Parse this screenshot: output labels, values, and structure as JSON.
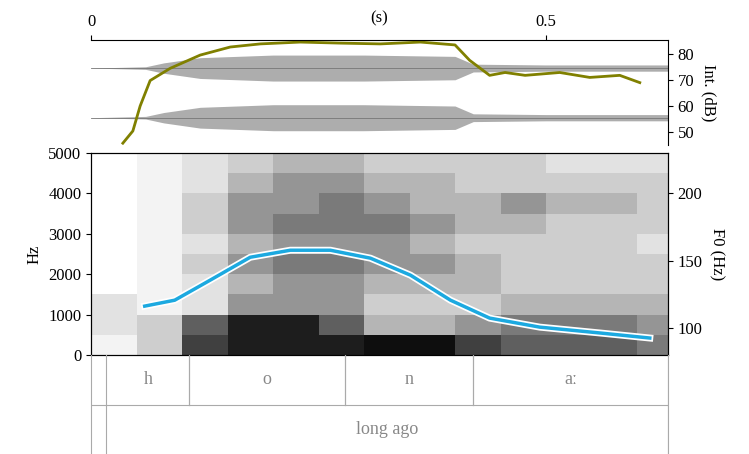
{
  "chart_data": [
    {
      "type": "line",
      "xlabel": "(s)",
      "xlim": [
        0,
        0.634
      ],
      "xticks": [
        0,
        0.5
      ],
      "ylabel": "Int. (dB)",
      "ylim": [
        45,
        85.4
      ],
      "yticks": [
        50,
        60,
        70,
        80
      ],
      "waveform": {
        "time": [
          0,
          0.06,
          0.08,
          0.12,
          0.2,
          0.3,
          0.4,
          0.42,
          0.5,
          0.634
        ],
        "amplitude": [
          0,
          0.5,
          2,
          4,
          5,
          5,
          4.5,
          1.5,
          1.2,
          1.2
        ],
        "channel_levels": [
          74.6,
          55.5
        ],
        "color": "#777777"
      },
      "series": [
        {
          "color": "#808000",
          "x": [
            0.035,
            0.046,
            0.054,
            0.065,
            0.087,
            0.12,
            0.153,
            0.186,
            0.23,
            0.274,
            0.318,
            0.362,
            0.4,
            0.416,
            0.438,
            0.455,
            0.477,
            0.515,
            0.548,
            0.581,
            0.603
          ],
          "values": [
            45.7,
            50.4,
            60,
            69.8,
            74.5,
            79.6,
            82.7,
            83.9,
            84.6,
            84.2,
            83.9,
            84.6,
            83.5,
            77.6,
            71.8,
            72.9,
            71.8,
            72.9,
            71,
            71.8,
            69
          ]
        }
      ]
    },
    {
      "type": "heatmap",
      "ylabel": "Hz",
      "xlim": [
        0,
        0.634
      ],
      "ylim": [
        0,
        5000
      ],
      "yticks": [
        0,
        1000,
        2000,
        3000,
        4000,
        5000
      ],
      "tick_labels": "y",
      "spectrogram": {
        "time_edges": [
          0,
          0.05,
          0.1,
          0.15,
          0.2,
          0.25,
          0.3,
          0.35,
          0.4,
          0.45,
          0.5,
          0.55,
          0.6,
          0.65
        ],
        "frequency_edges": [
          0,
          500,
          1000,
          1500,
          2000,
          2500,
          3000,
          3500,
          4000,
          4500,
          5000
        ],
        "cell_range": [
          0,
          1
        ],
        "cells": [
          [
            0.1,
            0.2,
            0.2,
            0.0,
            0.0,
            0.0,
            0.0,
            0.0,
            0.0,
            0.0
          ],
          [
            0.3,
            0.3,
            0.1,
            0.1,
            0.1,
            0.1,
            0.1,
            0.1,
            0.1,
            0.1
          ],
          [
            0.8,
            0.7,
            0.2,
            0.2,
            0.3,
            0.2,
            0.3,
            0.3,
            0.2,
            0.2
          ],
          [
            0.9,
            0.9,
            0.5,
            0.4,
            0.5,
            0.4,
            0.5,
            0.5,
            0.4,
            0.3
          ],
          [
            0.9,
            0.9,
            0.5,
            0.5,
            0.6,
            0.5,
            0.6,
            0.5,
            0.5,
            0.4
          ],
          [
            0.9,
            0.7,
            0.5,
            0.5,
            0.6,
            0.5,
            0.6,
            0.6,
            0.5,
            0.4
          ],
          [
            0.95,
            0.4,
            0.3,
            0.4,
            0.5,
            0.5,
            0.6,
            0.5,
            0.4,
            0.3
          ],
          [
            0.95,
            0.4,
            0.3,
            0.4,
            0.5,
            0.4,
            0.5,
            0.4,
            0.4,
            0.3
          ],
          [
            0.8,
            0.5,
            0.3,
            0.4,
            0.4,
            0.3,
            0.4,
            0.4,
            0.3,
            0.3
          ],
          [
            0.7,
            0.6,
            0.4,
            0.3,
            0.3,
            0.3,
            0.4,
            0.5,
            0.3,
            0.3
          ],
          [
            0.7,
            0.6,
            0.4,
            0.3,
            0.3,
            0.3,
            0.3,
            0.4,
            0.3,
            0.2
          ],
          [
            0.7,
            0.6,
            0.4,
            0.3,
            0.3,
            0.3,
            0.3,
            0.4,
            0.3,
            0.2
          ],
          [
            0.6,
            0.5,
            0.4,
            0.3,
            0.3,
            0.2,
            0.3,
            0.3,
            0.3,
            0.2
          ]
        ]
      },
      "y2label": "F0 (Hz)",
      "y2lim": [
        80,
        230
      ],
      "y2ticks": [
        100,
        150,
        200
      ],
      "series": [
        {
          "axis": "y2",
          "type": "line",
          "color": "#1ca9e0",
          "x": [
            0.059,
            0.092,
            0.131,
            0.175,
            0.219,
            0.263,
            0.307,
            0.351,
            0.395,
            0.438,
            0.493,
            0.56,
            0.614
          ],
          "values": [
            116.3,
            120.7,
            135.6,
            152.6,
            157.8,
            157.8,
            151.9,
            139.3,
            120.7,
            107.4,
            100.7,
            96.3,
            92.6
          ]
        }
      ]
    }
  ],
  "tiers": [
    {
      "intervals": [
        {
          "start": 0.017,
          "end": 0.108,
          "label": "h"
        },
        {
          "start": 0.108,
          "end": 0.279,
          "label": "o"
        },
        {
          "start": 0.279,
          "end": 0.42,
          "label": "n"
        },
        {
          "start": 0.42,
          "end": 0.634,
          "label": "aː"
        }
      ]
    },
    {
      "intervals": [
        {
          "start": 0.017,
          "end": 0.634,
          "label": "long ago"
        }
      ]
    }
  ]
}
